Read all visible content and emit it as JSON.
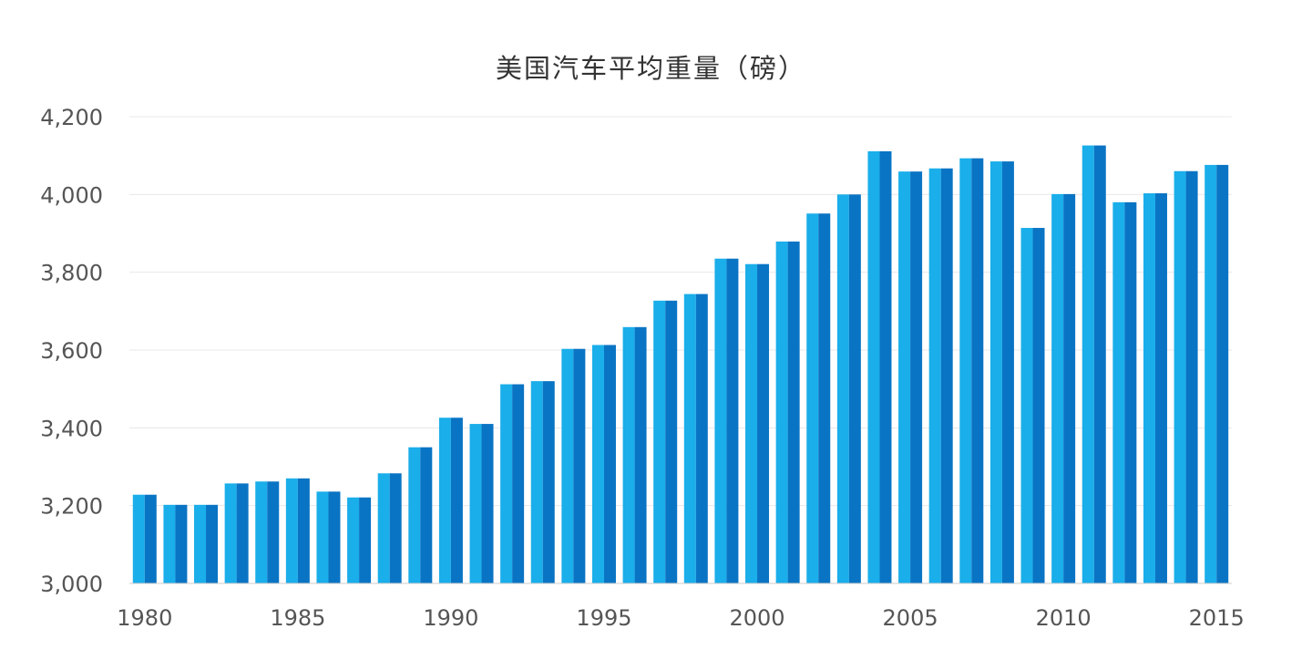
{
  "chart_data": {
    "type": "bar",
    "title": "美国汽车平均重量（磅）",
    "xlabel": "",
    "ylabel": "",
    "categories": [
      "1980",
      "1981",
      "1982",
      "1983",
      "1984",
      "1985",
      "1986",
      "1987",
      "1988",
      "1989",
      "1990",
      "1991",
      "1992",
      "1993",
      "1994",
      "1995",
      "1996",
      "1997",
      "1998",
      "1999",
      "2000",
      "2001",
      "2002",
      "2003",
      "2004",
      "2005",
      "2006",
      "2007",
      "2008",
      "2009",
      "2010",
      "2011",
      "2012",
      "2013",
      "2014",
      "2015"
    ],
    "values": [
      3228,
      3202,
      3202,
      3257,
      3262,
      3270,
      3236,
      3221,
      3283,
      3350,
      3426,
      3410,
      3512,
      3520,
      3603,
      3613,
      3659,
      3727,
      3744,
      3835,
      3821,
      3879,
      3951,
      4000,
      4111,
      4059,
      4067,
      4093,
      4085,
      3914,
      4001,
      4126,
      3980,
      4003,
      4060,
      4076
    ],
    "ylim": [
      3000,
      4200
    ],
    "yticks": [
      3000,
      3200,
      3400,
      3600,
      3800,
      4000,
      4200
    ],
    "ytick_labels": [
      "3,000",
      "3,200",
      "3,400",
      "3,600",
      "3,800",
      "4,000",
      "4,200"
    ],
    "xtick_labels": [
      "1980",
      "1985",
      "1990",
      "1995",
      "2000",
      "2005",
      "2010",
      "2015"
    ],
    "grid": true,
    "colors": {
      "bar_light": "#1aaeea",
      "bar_dark": "#0a74c4",
      "grid": "#e8e8e8",
      "axis": "#cccccc"
    }
  }
}
